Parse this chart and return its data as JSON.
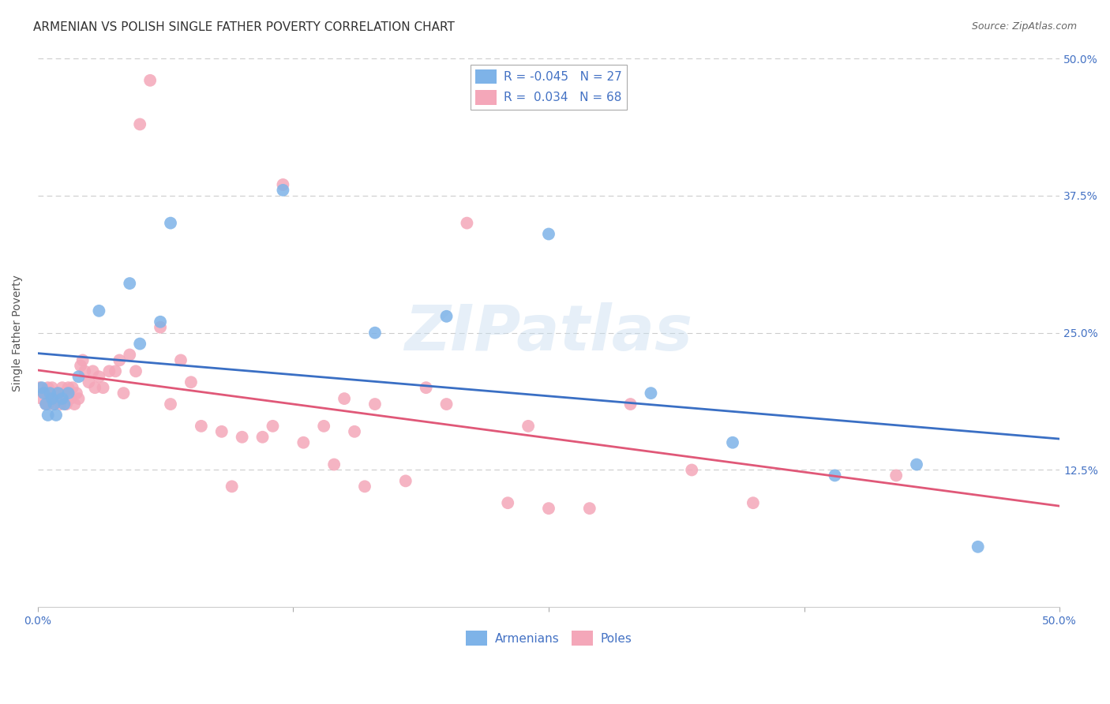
{
  "title": "ARMENIAN VS POLISH SINGLE FATHER POVERTY CORRELATION CHART",
  "source": "Source: ZipAtlas.com",
  "xlabel": "",
  "ylabel": "Single Father Poverty",
  "xlim": [
    0.0,
    0.5
  ],
  "ylim": [
    0.0,
    0.5
  ],
  "armenian_color": "#7EB3E8",
  "polish_color": "#F4A7B9",
  "line_armenian_color": "#3A6FC4",
  "line_polish_color": "#E05878",
  "watermark_text": "ZIPatlas",
  "legend_armenian_R": "-0.045",
  "legend_armenian_N": "27",
  "legend_polish_R": "0.034",
  "legend_polish_N": "68",
  "background_color": "#FFFFFF",
  "grid_color": "#CCCCCC",
  "title_fontsize": 11,
  "label_fontsize": 10,
  "tick_fontsize": 10,
  "armenian_x": [
    0.002,
    0.003,
    0.004,
    0.005,
    0.006,
    0.007,
    0.008,
    0.009,
    0.01,
    0.012,
    0.013,
    0.015,
    0.02,
    0.03,
    0.045,
    0.05,
    0.06,
    0.065,
    0.12,
    0.165,
    0.2,
    0.25,
    0.3,
    0.34,
    0.39,
    0.43,
    0.46
  ],
  "armenian_y": [
    0.2,
    0.195,
    0.185,
    0.175,
    0.195,
    0.19,
    0.185,
    0.175,
    0.195,
    0.19,
    0.185,
    0.195,
    0.21,
    0.27,
    0.295,
    0.24,
    0.26,
    0.35,
    0.38,
    0.25,
    0.265,
    0.34,
    0.195,
    0.15,
    0.12,
    0.13,
    0.055
  ],
  "polish_x": [
    0.001,
    0.002,
    0.003,
    0.004,
    0.005,
    0.005,
    0.006,
    0.007,
    0.007,
    0.008,
    0.009,
    0.01,
    0.011,
    0.012,
    0.013,
    0.014,
    0.015,
    0.016,
    0.017,
    0.018,
    0.019,
    0.02,
    0.021,
    0.022,
    0.023,
    0.025,
    0.027,
    0.028,
    0.03,
    0.032,
    0.035,
    0.038,
    0.04,
    0.042,
    0.045,
    0.048,
    0.05,
    0.055,
    0.06,
    0.065,
    0.07,
    0.075,
    0.08,
    0.09,
    0.095,
    0.1,
    0.11,
    0.115,
    0.12,
    0.13,
    0.14,
    0.145,
    0.15,
    0.155,
    0.16,
    0.165,
    0.18,
    0.19,
    0.2,
    0.21,
    0.23,
    0.24,
    0.25,
    0.27,
    0.29,
    0.32,
    0.35,
    0.42
  ],
  "polish_y": [
    0.2,
    0.19,
    0.195,
    0.185,
    0.2,
    0.185,
    0.195,
    0.19,
    0.2,
    0.185,
    0.195,
    0.19,
    0.185,
    0.2,
    0.195,
    0.185,
    0.2,
    0.19,
    0.2,
    0.185,
    0.195,
    0.19,
    0.22,
    0.225,
    0.215,
    0.205,
    0.215,
    0.2,
    0.21,
    0.2,
    0.215,
    0.215,
    0.225,
    0.195,
    0.23,
    0.215,
    0.44,
    0.48,
    0.255,
    0.185,
    0.225,
    0.205,
    0.165,
    0.16,
    0.11,
    0.155,
    0.155,
    0.165,
    0.385,
    0.15,
    0.165,
    0.13,
    0.19,
    0.16,
    0.11,
    0.185,
    0.115,
    0.2,
    0.185,
    0.35,
    0.095,
    0.165,
    0.09,
    0.09,
    0.185,
    0.125,
    0.095,
    0.12
  ]
}
